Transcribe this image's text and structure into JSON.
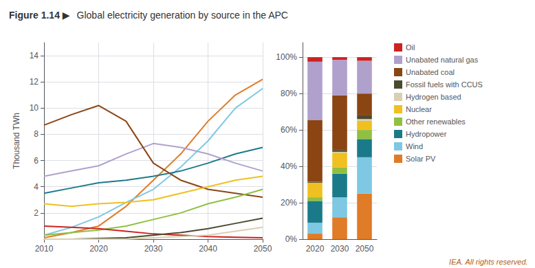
{
  "chart_data": [
    {
      "type": "line",
      "title": "Figure 1.14 ▶",
      "subtitle": "Global electricity generation by source in the APC",
      "ylabel": "Thousand TWh",
      "x": [
        2010,
        2015,
        2020,
        2025,
        2030,
        2035,
        2040,
        2045,
        2050
      ],
      "xlim": [
        2010,
        2050
      ],
      "xticks": [
        2010,
        2020,
        2030,
        2040,
        2050
      ],
      "ylim": [
        0,
        15
      ],
      "yticks": [
        2,
        4,
        6,
        8,
        10,
        12,
        14
      ],
      "grid": true,
      "series": [
        {
          "name": "Solar PV",
          "color": "#e07b28",
          "values": [
            0.1,
            0.5,
            1.0,
            2.5,
            4.5,
            6.5,
            9.0,
            11.0,
            12.2
          ]
        },
        {
          "name": "Wind",
          "color": "#7ec8e3",
          "values": [
            0.3,
            0.9,
            1.7,
            2.8,
            3.8,
            5.5,
            7.5,
            10.0,
            11.5
          ]
        },
        {
          "name": "Hydropower",
          "color": "#1b7a8a",
          "values": [
            3.5,
            3.9,
            4.3,
            4.5,
            4.8,
            5.2,
            5.8,
            6.5,
            7.0
          ]
        },
        {
          "name": "Unabated natural gas",
          "color": "#b0a0cc",
          "values": [
            4.8,
            5.2,
            5.6,
            6.5,
            7.3,
            7.0,
            6.5,
            5.8,
            5.2
          ]
        },
        {
          "name": "Unabated coal",
          "color": "#8B4513",
          "values": [
            8.7,
            9.5,
            10.2,
            9.0,
            5.8,
            4.5,
            3.8,
            3.5,
            3.2
          ]
        },
        {
          "name": "Nuclear",
          "color": "#f0c020",
          "values": [
            2.7,
            2.5,
            2.7,
            2.8,
            3.0,
            3.5,
            4.0,
            4.5,
            4.8
          ]
        },
        {
          "name": "Other renewables",
          "color": "#90c040",
          "values": [
            0.3,
            0.5,
            0.7,
            1.0,
            1.5,
            2.0,
            2.7,
            3.2,
            3.8
          ]
        },
        {
          "name": "Oil",
          "color": "#cc2222",
          "values": [
            1.0,
            0.9,
            0.8,
            0.6,
            0.4,
            0.3,
            0.2,
            0.15,
            0.1
          ]
        },
        {
          "name": "Fossil fuels with CCUS",
          "color": "#4a4a30",
          "values": [
            0.0,
            0.0,
            0.05,
            0.1,
            0.3,
            0.5,
            0.8,
            1.2,
            1.6
          ]
        },
        {
          "name": "Hydrogen based",
          "color": "#d8d0b0",
          "values": [
            0.0,
            0.0,
            0.0,
            0.0,
            0.1,
            0.2,
            0.3,
            0.6,
            0.9
          ]
        }
      ]
    },
    {
      "type": "bar",
      "stacked": true,
      "categories": [
        "2020",
        "2030",
        "2050"
      ],
      "ylim": [
        0,
        108
      ],
      "yticks": [
        {
          "value": 0,
          "label": "0%"
        },
        {
          "value": 20,
          "label": "20%"
        },
        {
          "value": 40,
          "label": "40%"
        },
        {
          "value": 60,
          "label": "60%"
        },
        {
          "value": 80,
          "label": "80%"
        },
        {
          "value": 100,
          "label": "100%"
        }
      ],
      "grid": true,
      "legend": "right",
      "annotations": [
        "IEA. All rights reserved."
      ],
      "series": [
        {
          "name": "Solar PV",
          "color": "#e07b28",
          "values": [
            3.0,
            12.0,
            25.0
          ]
        },
        {
          "name": "Wind",
          "color": "#7ec8e3",
          "values": [
            6.0,
            11.0,
            20.0
          ]
        },
        {
          "name": "Hydropower",
          "color": "#1b7a8a",
          "values": [
            12.0,
            13.0,
            10.0
          ]
        },
        {
          "name": "Other renewables",
          "color": "#90c040",
          "values": [
            2.0,
            3.5,
            5.0
          ]
        },
        {
          "name": "Nuclear",
          "color": "#f0c020",
          "values": [
            8.0,
            8.0,
            5.0
          ]
        },
        {
          "name": "Hydrogen based",
          "color": "#d8d0b0",
          "values": [
            0.0,
            0.5,
            1.0
          ]
        },
        {
          "name": "Fossil fuels with CCUS",
          "color": "#4a4a30",
          "values": [
            0.5,
            1.0,
            2.0
          ]
        },
        {
          "name": "Unabated coal",
          "color": "#8B4513",
          "values": [
            34.0,
            30.0,
            12.0
          ]
        },
        {
          "name": "Unabated natural gas",
          "color": "#b0a0cc",
          "values": [
            32.0,
            19.5,
            18.0
          ]
        },
        {
          "name": "Oil",
          "color": "#cc2222",
          "values": [
            2.5,
            1.5,
            2.0
          ]
        }
      ]
    }
  ]
}
